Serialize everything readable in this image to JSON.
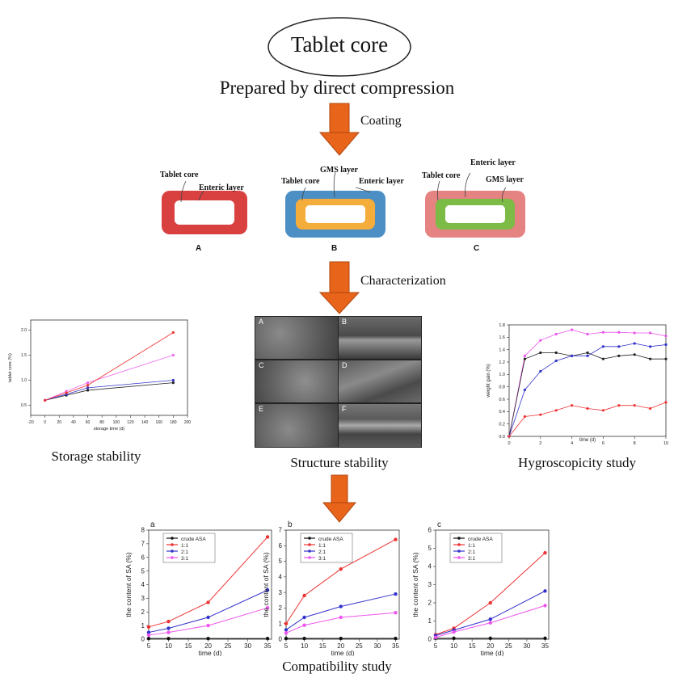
{
  "top": {
    "ellipse_text": "Tablet core",
    "subtitle": "Prepared by direct compression",
    "arrow1_label": "Coating",
    "arrow2_label": "Characterization"
  },
  "tablets": {
    "A": {
      "letter": "A",
      "labels": [
        "Tablet core",
        "Enteric layer"
      ],
      "colors": {
        "outer": "#d94040",
        "inner": "#ffffff"
      }
    },
    "B": {
      "letter": "B",
      "labels": [
        "GMS layer",
        "Tablet core",
        "Enteric layer"
      ],
      "colors": {
        "outer": "#4b8fc4",
        "middle": "#f4ad3b",
        "inner": "#ffffff"
      }
    },
    "C": {
      "letter": "C",
      "labels": [
        "Enteric layer",
        "Tablet core",
        "GMS layer"
      ],
      "colors": {
        "outer": "#e58282",
        "middle": "#7cbb46",
        "inner": "#ffffff"
      }
    }
  },
  "characterization": {
    "storage_label": "Storage stability",
    "structure_label": "Structure stability",
    "hygro_label": "Hygroscopicity study",
    "sem_letters": [
      "A",
      "B",
      "C",
      "D",
      "E",
      "F"
    ]
  },
  "compatibility_label": "Compatibility study",
  "chart_data": [
    {
      "type": "line",
      "xlabel": "storage time (d)",
      "ylabel": "tablet core (%)",
      "xlim": [
        -20,
        200
      ],
      "ylim": [
        0.3,
        2.2
      ],
      "xticks": [
        "-20",
        "0",
        "20",
        "40",
        "60",
        "80",
        "100",
        "120",
        "140",
        "160",
        "180",
        "200"
      ],
      "yticks": [
        "0.5",
        "1.0",
        "1.5",
        "2.0"
      ],
      "x": [
        0,
        30,
        60,
        180
      ],
      "series": [
        {
          "color": "#222222",
          "values": [
            0.6,
            0.7,
            0.8,
            0.95
          ]
        },
        {
          "color": "#3333cc",
          "values": [
            0.6,
            0.72,
            0.85,
            1.0
          ]
        },
        {
          "color": "#ee66ee",
          "values": [
            0.6,
            0.78,
            0.95,
            1.5
          ]
        },
        {
          "color": "#ee3333",
          "values": [
            0.6,
            0.75,
            0.9,
            1.95
          ]
        }
      ]
    },
    {
      "type": "line",
      "xlabel": "time (d)",
      "ylabel": "weight gain (%)",
      "xlim": [
        0,
        10
      ],
      "ylim": [
        0,
        1.8
      ],
      "xticks": [
        "0",
        "2",
        "4",
        "6",
        "8",
        "10"
      ],
      "yticks": [
        "0.0",
        "0.2",
        "0.4",
        "0.6",
        "0.8",
        "1.0",
        "1.2",
        "1.4",
        "1.6",
        "1.8"
      ],
      "x": [
        0,
        1,
        2,
        3,
        4,
        5,
        6,
        7,
        8,
        9,
        10
      ],
      "series": [
        {
          "color": "#ee55ee",
          "values": [
            0,
            1.3,
            1.55,
            1.65,
            1.72,
            1.65,
            1.68,
            1.68,
            1.67,
            1.67,
            1.62
          ]
        },
        {
          "color": "#222222",
          "values": [
            0,
            1.25,
            1.35,
            1.35,
            1.3,
            1.35,
            1.25,
            1.3,
            1.32,
            1.25,
            1.25
          ]
        },
        {
          "color": "#3333cc",
          "values": [
            0,
            0.75,
            1.05,
            1.22,
            1.3,
            1.3,
            1.45,
            1.45,
            1.5,
            1.45,
            1.48
          ]
        },
        {
          "color": "#ee3333",
          "values": [
            0,
            0.32,
            0.35,
            0.42,
            0.5,
            0.45,
            0.42,
            0.5,
            0.5,
            0.45,
            0.55
          ]
        }
      ]
    },
    {
      "type": "line",
      "panel": "a",
      "xlabel": "time  (d)",
      "ylabel": "the content of SA (%)",
      "xlim": [
        5,
        36
      ],
      "ylim": [
        0,
        8
      ],
      "xticks": [
        "5",
        "10",
        "15",
        "20",
        "25",
        "30",
        "35"
      ],
      "yticks": [
        "0",
        "1",
        "2",
        "3",
        "4",
        "5",
        "6",
        "7",
        "8"
      ],
      "legend": [
        "crude ASA",
        "1:1",
        "2:1",
        "3:1"
      ],
      "x": [
        5,
        10,
        20,
        35
      ],
      "series": [
        {
          "name": "crude ASA",
          "color": "#111111",
          "values": [
            0.05,
            0.05,
            0.05,
            0.05
          ]
        },
        {
          "name": "1:1",
          "color": "#ee3333",
          "values": [
            0.9,
            1.3,
            2.7,
            7.5
          ]
        },
        {
          "name": "2:1",
          "color": "#3333cc",
          "values": [
            0.5,
            0.8,
            1.6,
            3.6
          ]
        },
        {
          "name": "3:1",
          "color": "#ee55ee",
          "values": [
            0.3,
            0.5,
            1.0,
            2.3
          ]
        }
      ]
    },
    {
      "type": "line",
      "panel": "b",
      "xlabel": "time  (d)",
      "ylabel": "the content of SA (%)",
      "xlim": [
        5,
        36
      ],
      "ylim": [
        0,
        7
      ],
      "xticks": [
        "5",
        "10",
        "15",
        "20",
        "25",
        "30",
        "35"
      ],
      "yticks": [
        "0",
        "1",
        "2",
        "3",
        "4",
        "5",
        "6",
        "7"
      ],
      "legend": [
        "crude ASA",
        "1:1",
        "2:1",
        "3:1"
      ],
      "x": [
        5,
        10,
        20,
        35
      ],
      "series": [
        {
          "name": "crude ASA",
          "color": "#111111",
          "values": [
            0.05,
            0.05,
            0.05,
            0.05
          ]
        },
        {
          "name": "1:1",
          "color": "#ee3333",
          "values": [
            1.0,
            2.8,
            4.5,
            6.4
          ]
        },
        {
          "name": "2:1",
          "color": "#3333cc",
          "values": [
            0.6,
            1.4,
            2.1,
            2.9
          ]
        },
        {
          "name": "3:1",
          "color": "#ee55ee",
          "values": [
            0.4,
            0.9,
            1.4,
            1.7
          ]
        }
      ]
    },
    {
      "type": "line",
      "panel": "c",
      "xlabel": "time  (d)",
      "ylabel": "the content of SA (%)",
      "xlim": [
        5,
        36
      ],
      "ylim": [
        0,
        6
      ],
      "xticks": [
        "5",
        "10",
        "15",
        "20",
        "25",
        "30",
        "35"
      ],
      "yticks": [
        "0",
        "1",
        "2",
        "3",
        "4",
        "5",
        "6"
      ],
      "legend": [
        "crude ASA",
        "1:1",
        "2:1",
        "3:1"
      ],
      "x": [
        5,
        10,
        20,
        35
      ],
      "series": [
        {
          "name": "crude ASA",
          "color": "#111111",
          "values": [
            0.05,
            0.05,
            0.05,
            0.05
          ]
        },
        {
          "name": "1:1",
          "color": "#ee3333",
          "values": [
            0.25,
            0.6,
            2.0,
            4.75
          ]
        },
        {
          "name": "2:1",
          "color": "#3333cc",
          "values": [
            0.2,
            0.5,
            1.1,
            2.65
          ]
        },
        {
          "name": "3:1",
          "color": "#ee55ee",
          "values": [
            0.1,
            0.4,
            0.9,
            1.85
          ]
        }
      ]
    }
  ]
}
